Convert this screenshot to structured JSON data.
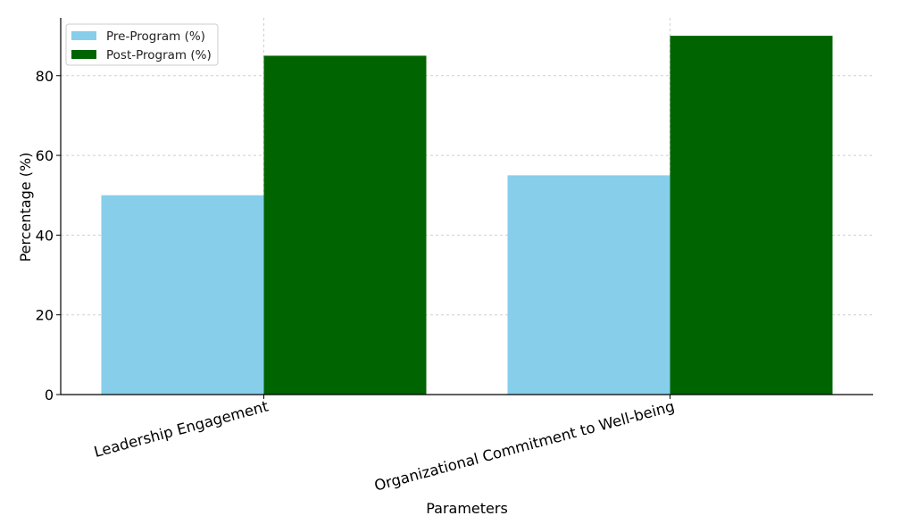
{
  "chart_data": {
    "type": "bar",
    "title": "",
    "xlabel": "Parameters",
    "ylabel": "Percentage (%)",
    "categories": [
      "Leadership Engagement",
      "Organizational Commitment to Well-being"
    ],
    "series": [
      {
        "name": "Pre-Program (%)",
        "values": [
          50,
          55
        ],
        "color": "#87ceeb"
      },
      {
        "name": "Post-Program (%)",
        "values": [
          85,
          90
        ],
        "color": "#006400"
      }
    ],
    "ylim": [
      0,
      94.5
    ],
    "yticks": [
      0,
      20,
      40,
      60,
      80
    ],
    "grid": true,
    "legend_position": "top-left"
  }
}
